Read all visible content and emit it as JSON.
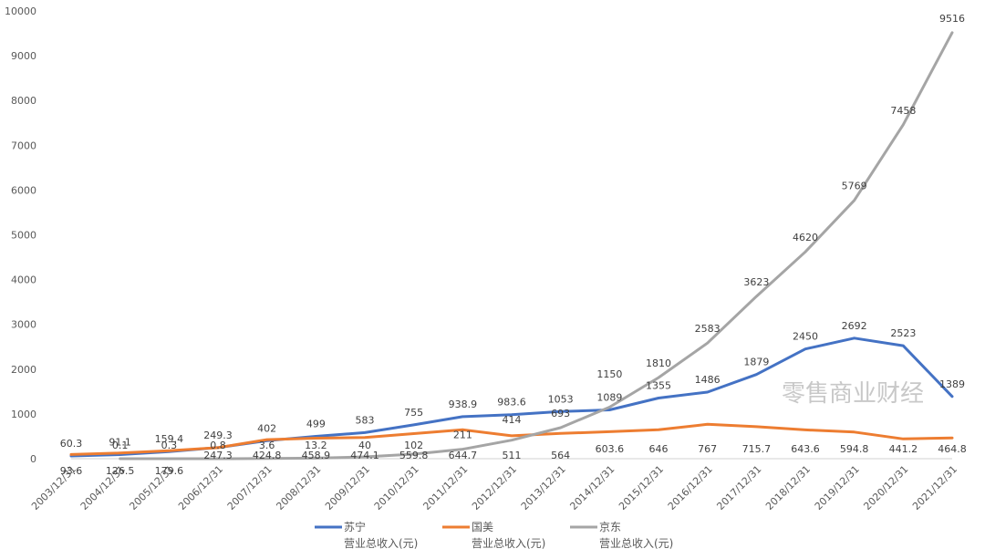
{
  "chart_data": {
    "type": "line",
    "categories": [
      "2003/12/31",
      "2004/12/31",
      "2005/12/31",
      "2006/12/31",
      "2007/12/31",
      "2008/12/31",
      "2009/12/31",
      "2010/12/31",
      "2011/12/31",
      "2012/12/31",
      "2013/12/31",
      "2014/12/31",
      "2015/12/31",
      "2016/12/31",
      "2017/12/31",
      "2018/12/31",
      "2019/12/31",
      "2020/12/31",
      "2021/12/31"
    ],
    "y_ticks": [
      "0",
      "1000",
      "2000",
      "3000",
      "4000",
      "5000",
      "6000",
      "7000",
      "8000",
      "9000",
      "10000"
    ],
    "ylim": [
      0,
      10000
    ],
    "grid": false,
    "legend_position": "bottom",
    "series": [
      {
        "name": "苏宁",
        "name_line2": "营业总收入(元)",
        "color": "#4472C4",
        "values": [
          60.3,
          91.1,
          159.4,
          249.3,
          402,
          499,
          583,
          755,
          938.9,
          983.6,
          1053,
          1089,
          1355,
          1486,
          1879,
          2450,
          2692,
          2523,
          1389
        ],
        "labels": [
          "60.3",
          "91.1",
          "159.4",
          "249.3",
          "402",
          "499",
          "583",
          "755",
          "938.9",
          "983.6",
          "1053",
          "1089",
          "1355",
          "1486",
          "1879",
          "2450",
          "2692",
          "2523",
          "1389"
        ]
      },
      {
        "name": "国美",
        "name_line2": "营业总收入(元)",
        "color": "#ED7D31",
        "values": [
          93.6,
          126.5,
          179.6,
          247.3,
          424.8,
          458.9,
          474.1,
          559.8,
          644.7,
          511,
          564,
          603.6,
          646,
          767,
          715.7,
          643.6,
          594.8,
          441.2,
          464.8
        ],
        "labels": [
          "93.6",
          "126.5",
          "179.6",
          "247.3",
          "424.8",
          "458.9",
          "474.1",
          "559.8",
          "644.7",
          "511",
          "564",
          "603.6",
          "646",
          "767",
          "715.7",
          "643.6",
          "594.8",
          "441.2",
          "464.8"
        ]
      },
      {
        "name": "京东",
        "name_line2": "营业总收入(元)",
        "color": "#A5A5A5",
        "values": [
          null,
          0.1,
          0.3,
          0.8,
          3.6,
          13.2,
          40,
          102,
          211,
          414,
          693,
          1150,
          1810,
          2583,
          3623,
          4620,
          5769,
          7458,
          9516
        ],
        "labels": [
          "",
          "0.1",
          "0.3",
          "0.8",
          "3.6",
          "13.2",
          "40",
          "102",
          "211",
          "414",
          "693",
          "1150",
          "1810",
          "2583",
          "3623",
          "4620",
          "5769",
          "7458",
          "9516"
        ]
      }
    ]
  },
  "watermark": "零售商业财经"
}
